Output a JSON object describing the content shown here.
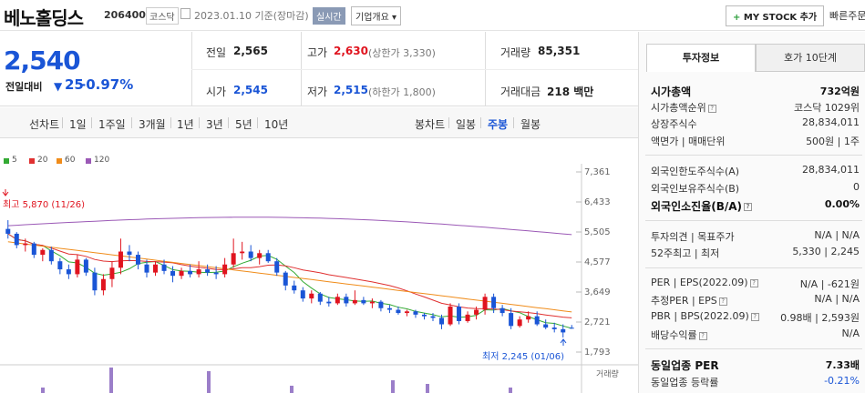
{
  "header": {
    "title": "베노홀딩스",
    "code": "206400",
    "market": "코스닥",
    "date": "2023.01.10  기준(장마감)",
    "realtime": "실시간",
    "overview": "기업개요 ▾",
    "mystock": "MY STOCK 추가",
    "quick": "빠른주문"
  },
  "price": {
    "current": "2,540",
    "prev_label": "전일대비",
    "change": "25",
    "change_pct": "-0.97%",
    "stats": [
      {
        "label": "전일",
        "value": "2,565",
        "sub": ""
      },
      {
        "label": "고가",
        "value": "2,630",
        "sub": "(상한가 3,330)"
      },
      {
        "label": "거래량",
        "value": "85,351",
        "sub": ""
      },
      {
        "label": "시가",
        "value": "2,545",
        "sub": ""
      },
      {
        "label": "저가",
        "value": "2,515",
        "sub": "(하한가 1,800)"
      },
      {
        "label": "거래대금",
        "value": "218 백만",
        "sub": ""
      }
    ]
  },
  "periods": {
    "line_label": "선차트",
    "line_items": [
      "1일",
      "1주일",
      "3개월",
      "1년",
      "3년",
      "5년",
      "10년"
    ],
    "candle_label": "봉차트",
    "candle_items": [
      "일봉",
      "주봉",
      "월봉"
    ],
    "active": "주봉"
  },
  "legend": [
    {
      "name": "5",
      "color": "#33aa33"
    },
    {
      "name": "20",
      "color": "#e03030"
    },
    {
      "name": "60",
      "color": "#f08c1a"
    },
    {
      "name": "120",
      "color": "#9b59b6"
    }
  ],
  "chart_data": {
    "type": "candlestick",
    "yticks": [
      "7,361",
      "6,433",
      "5,505",
      "4,577",
      "3,649",
      "2,721",
      "1,793"
    ],
    "ylim": [
      1793,
      7361
    ],
    "high_label": "최고 5,870 (11/26)",
    "low_label": "최저 2,245 (01/06)",
    "volume_label": "거래량",
    "candles": [
      [
        5600,
        5870,
        5300,
        5450
      ],
      [
        5450,
        5500,
        5000,
        5100
      ],
      [
        5100,
        5300,
        4900,
        5150
      ],
      [
        5150,
        5200,
        4700,
        4800
      ],
      [
        4800,
        5000,
        4600,
        4950
      ],
      [
        4950,
        5050,
        4500,
        4600
      ],
      [
        4600,
        4700,
        4200,
        4350
      ],
      [
        4350,
        4500,
        4050,
        4200
      ],
      [
        4200,
        4800,
        4100,
        4650
      ],
      [
        4650,
        4700,
        4150,
        4250
      ],
      [
        4250,
        4400,
        3550,
        3700
      ],
      [
        3700,
        4200,
        3550,
        4050
      ],
      [
        4050,
        4600,
        3800,
        4400
      ],
      [
        4400,
        5300,
        4200,
        4900
      ],
      [
        4900,
        5100,
        4600,
        4800
      ],
      [
        4800,
        4900,
        4350,
        4500
      ],
      [
        4500,
        4650,
        4100,
        4250
      ],
      [
        4250,
        4600,
        4150,
        4500
      ],
      [
        4500,
        4650,
        4200,
        4300
      ],
      [
        4300,
        4450,
        3950,
        4150
      ],
      [
        4150,
        4400,
        4050,
        4300
      ],
      [
        4300,
        4500,
        4100,
        4200
      ],
      [
        4200,
        4600,
        4100,
        4350
      ],
      [
        4350,
        4500,
        4150,
        4250
      ],
      [
        4250,
        4450,
        4050,
        4200
      ],
      [
        4200,
        4700,
        4100,
        4500
      ],
      [
        4500,
        5300,
        4400,
        4850
      ],
      [
        4850,
        5200,
        4650,
        4900
      ],
      [
        4900,
        5100,
        4600,
        4700
      ],
      [
        4700,
        4950,
        4500,
        4850
      ],
      [
        4850,
        4950,
        4550,
        4600
      ],
      [
        4600,
        4700,
        4150,
        4250
      ],
      [
        4250,
        4300,
        3700,
        3850
      ],
      [
        3850,
        4000,
        3600,
        3700
      ],
      [
        3700,
        3800,
        3350,
        3450
      ],
      [
        3450,
        3700,
        3300,
        3600
      ],
      [
        3600,
        3650,
        3250,
        3350
      ],
      [
        3350,
        3500,
        3200,
        3300
      ],
      [
        3300,
        3600,
        3250,
        3500
      ],
      [
        3500,
        3600,
        3200,
        3300
      ],
      [
        3300,
        3700,
        3250,
        3400
      ],
      [
        3400,
        3500,
        3250,
        3300
      ],
      [
        3300,
        3450,
        3150,
        3350
      ],
      [
        3350,
        3400,
        3050,
        3150
      ],
      [
        3150,
        3250,
        3000,
        3100
      ],
      [
        3100,
        3200,
        2950,
        3000
      ],
      [
        3000,
        3100,
        2900,
        3050
      ],
      [
        3050,
        3100,
        2850,
        2950
      ],
      [
        2950,
        3000,
        2800,
        2900
      ],
      [
        2900,
        3000,
        2750,
        2850
      ],
      [
        2850,
        2950,
        2500,
        2650
      ],
      [
        2650,
        3300,
        2600,
        3200
      ],
      [
        3200,
        3300,
        2650,
        2750
      ],
      [
        2750,
        3050,
        2700,
        2950
      ],
      [
        2950,
        3200,
        2800,
        3100
      ],
      [
        3100,
        3600,
        2950,
        3500
      ],
      [
        3500,
        3600,
        3000,
        3150
      ],
      [
        3150,
        3250,
        2900,
        3000
      ],
      [
        3000,
        3150,
        2500,
        2600
      ],
      [
        2600,
        2900,
        2550,
        2800
      ],
      [
        2800,
        3050,
        2700,
        2900
      ],
      [
        2900,
        3050,
        2600,
        2650
      ],
      [
        2650,
        2800,
        2500,
        2550
      ],
      [
        2550,
        2700,
        2400,
        2500
      ],
      [
        2500,
        2650,
        2245,
        2400
      ],
      [
        2545,
        2630,
        2515,
        2540
      ]
    ]
  },
  "panel": {
    "tabs": [
      "투자정보",
      "호가 10단계"
    ],
    "rows": [
      {
        "label": "시가총액",
        "value": "732억원",
        "bold": true
      },
      {
        "label": "시가총액순위",
        "value": "코스닥 1029위",
        "q": true
      },
      {
        "label": "상장주식수",
        "value": "28,834,011"
      },
      {
        "label": "액면가 | 매매단위",
        "value": "500원 | 1주"
      },
      {
        "label": "외국인한도주식수(A)",
        "value": "28,834,011"
      },
      {
        "label": "외국인보유주식수(B)",
        "value": "0"
      },
      {
        "label": "외국인소진율(B/A)",
        "value": "0.00%",
        "bold": true,
        "q": true
      },
      {
        "label": "투자의견 | 목표주가",
        "value": "N/A | N/A"
      },
      {
        "label": "52주최고 | 최저",
        "value": "5,330 | 2,245"
      },
      {
        "label": "PER | EPS(2022.09)",
        "value": "N/A | -621원",
        "q": true
      },
      {
        "label": "추정PER | EPS",
        "value": "N/A | N/A",
        "q": true
      },
      {
        "label": "PBR | BPS(2022.09)",
        "value": "0.98배 | 2,593원",
        "q": true
      },
      {
        "label": "배당수익률",
        "value": "N/A",
        "q": true
      },
      {
        "label": "동일업종 PER",
        "value": "7.33배",
        "bold": true
      },
      {
        "label": "동일업종 등락률",
        "value": "-0.21%",
        "blue": true
      }
    ]
  }
}
